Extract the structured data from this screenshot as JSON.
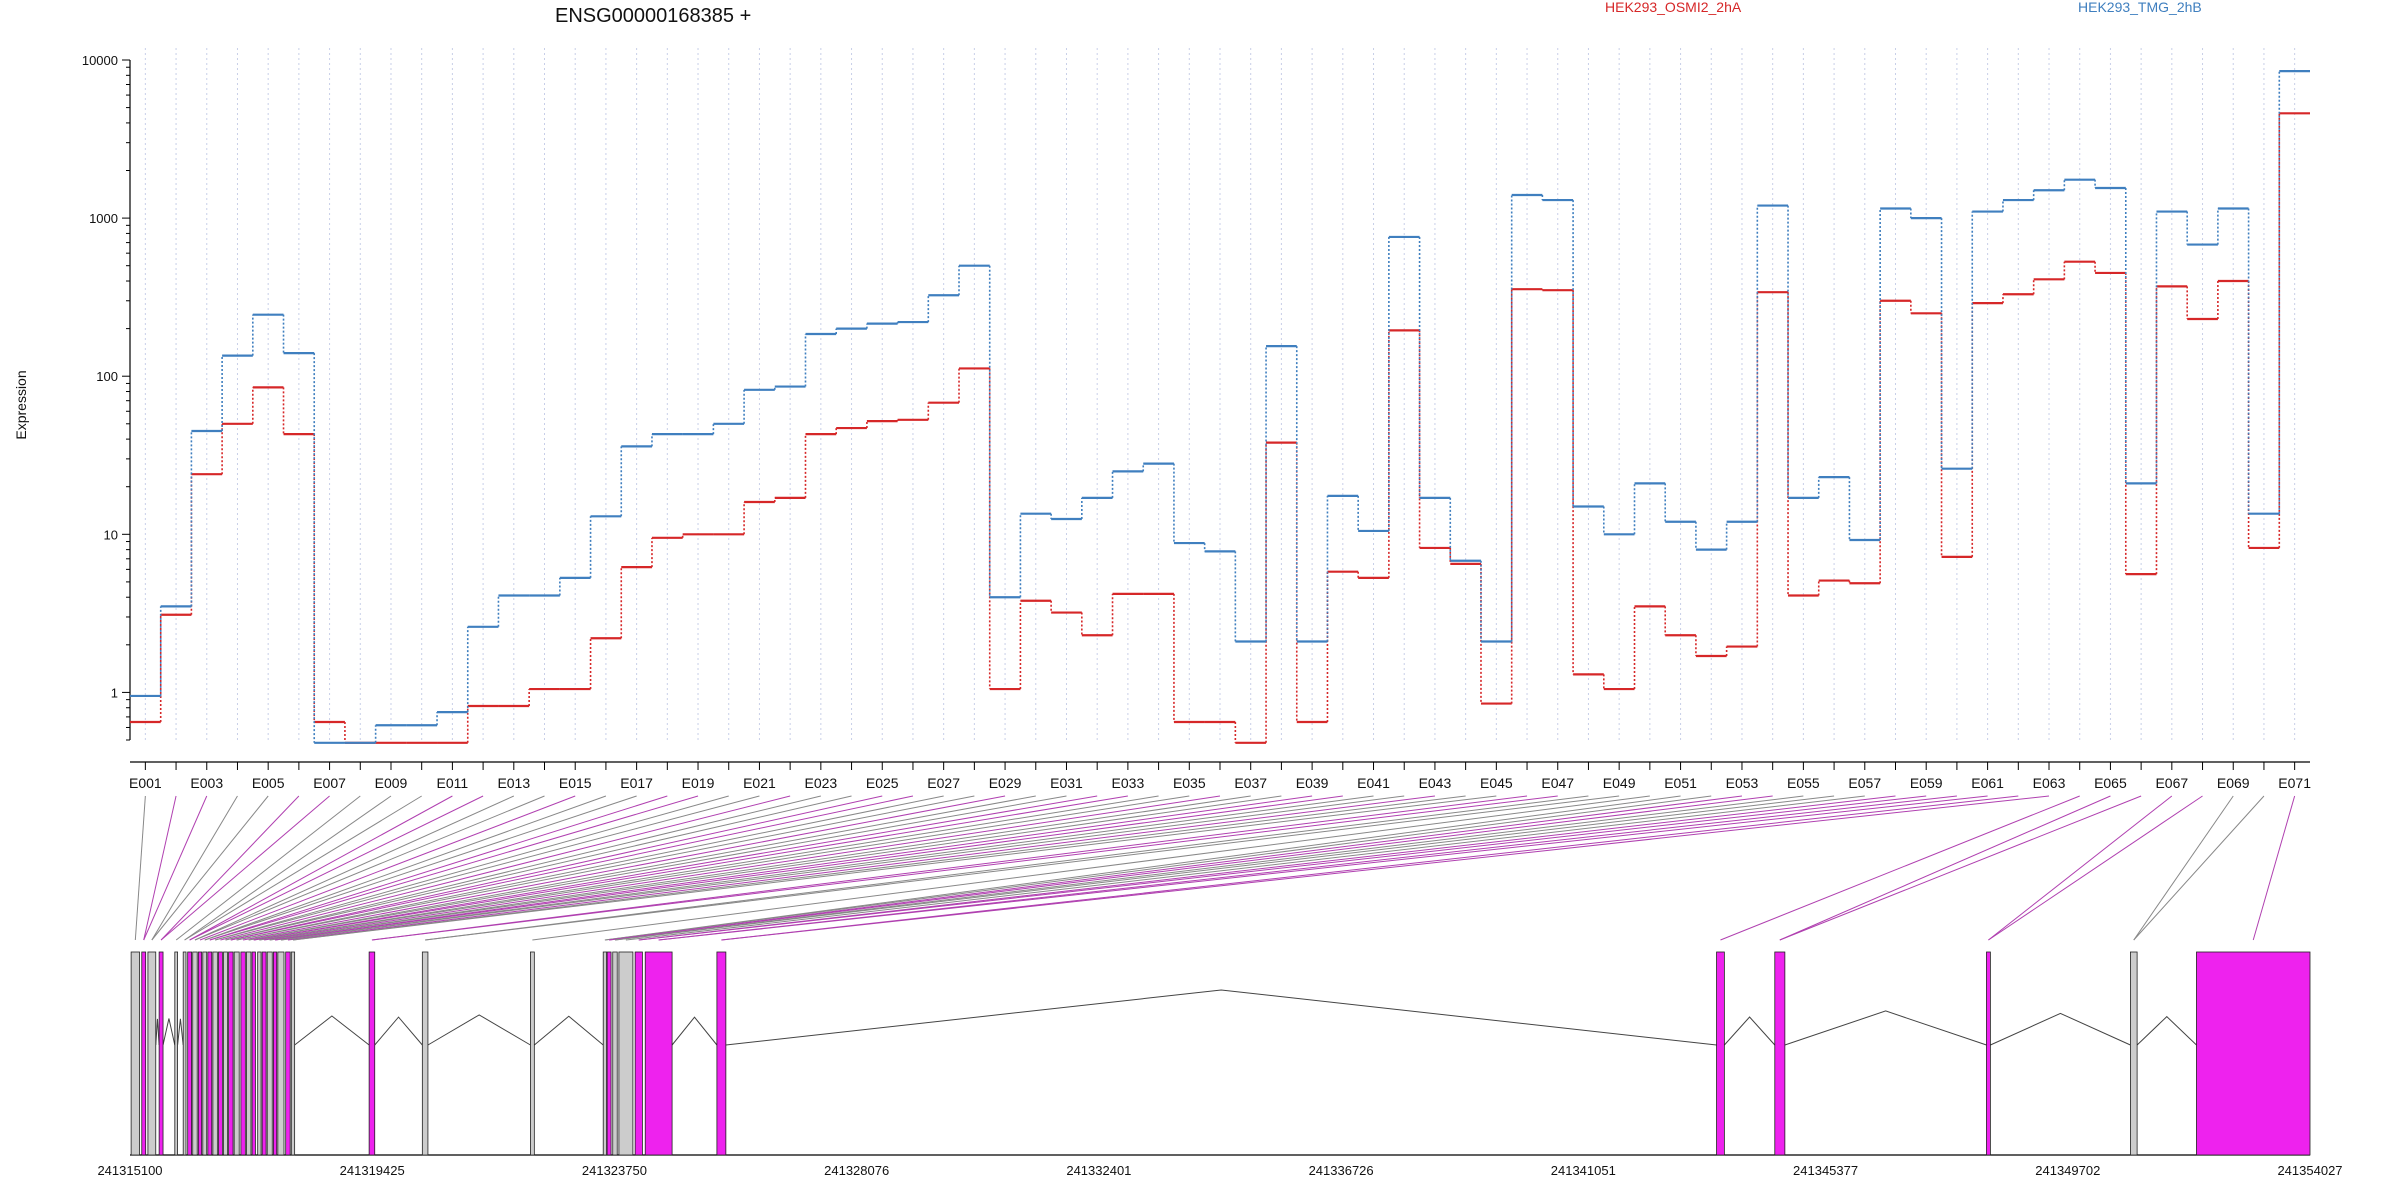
{
  "chart_data": {
    "type": "line",
    "title": "ENSG00000168385 +",
    "ylabel": "Expression",
    "y_scale": "log10",
    "ylim": [
      0.5,
      10000
    ],
    "y_ticks": [
      1,
      10,
      100,
      1000,
      10000
    ],
    "y_tick_labels": [
      "1",
      "10",
      "100",
      "1000",
      "10000"
    ],
    "colors": {
      "HEK293_OSMI2_2hA": "#d62728",
      "HEK293_TMG_2hB": "#3f7fbf",
      "exon_plain": "#cccccc",
      "exon_highlight": "#ee22ee",
      "connector_gray": "#888888",
      "connector_magenta": "#b040b0"
    },
    "categories": [
      "E001",
      "E002",
      "E003",
      "E004",
      "E005",
      "E006",
      "E007",
      "E008",
      "E009",
      "E010",
      "E011",
      "E012",
      "E013",
      "E014",
      "E015",
      "E016",
      "E017",
      "E018",
      "E019",
      "E020",
      "E021",
      "E022",
      "E023",
      "E024",
      "E025",
      "E026",
      "E027",
      "E028",
      "E029",
      "E030",
      "E031",
      "E032",
      "E033",
      "E034",
      "E035",
      "E036",
      "E037",
      "E038",
      "E039",
      "E040",
      "E041",
      "E042",
      "E043",
      "E044",
      "E045",
      "E046",
      "E047",
      "E048",
      "E049",
      "E050",
      "E051",
      "E052",
      "E053",
      "E054",
      "E055",
      "E056",
      "E057",
      "E058",
      "E059",
      "E060",
      "E061",
      "E062",
      "E063",
      "E064",
      "E065",
      "E066",
      "E067",
      "E068",
      "E069",
      "E070",
      "E071"
    ],
    "shown_labels": [
      "E001",
      "E003",
      "E005",
      "E007",
      "E009",
      "E011",
      "E013",
      "E015",
      "E017",
      "E019",
      "E021",
      "E023",
      "E025",
      "E027",
      "E029",
      "E031",
      "E033",
      "E035",
      "E037",
      "E039",
      "E041",
      "E043",
      "E045",
      "E047",
      "E049",
      "E051",
      "E053",
      "E055",
      "E057",
      "E059",
      "E061",
      "E063",
      "E065",
      "E067",
      "E069",
      "E071"
    ],
    "series": [
      {
        "name": "HEK293_OSMI2_2hA",
        "values": [
          0.65,
          3.1,
          24,
          50,
          85,
          43,
          0.65,
          0.48,
          0.48,
          0.48,
          0.48,
          0.82,
          0.82,
          1.05,
          1.05,
          2.2,
          6.2,
          9.5,
          10,
          10,
          16,
          17,
          43,
          47,
          52,
          53,
          68,
          112,
          1.05,
          3.8,
          3.2,
          2.3,
          4.2,
          4.2,
          0.65,
          0.65,
          0.48,
          38,
          0.65,
          5.8,
          5.3,
          195,
          8.2,
          6.5,
          0.85,
          355,
          350,
          1.3,
          1.05,
          3.5,
          2.3,
          1.7,
          1.95,
          340,
          4.1,
          5.1,
          4.9,
          300,
          250,
          7.2,
          290,
          330,
          410,
          530,
          450,
          5.6,
          370,
          230,
          400,
          8.2,
          4600
        ]
      },
      {
        "name": "HEK293_TMG_2hB",
        "values": [
          0.95,
          3.5,
          45,
          135,
          245,
          140,
          0.48,
          0.48,
          0.62,
          0.62,
          0.75,
          2.6,
          4.1,
          4.1,
          5.3,
          13,
          36,
          43,
          43,
          50,
          82,
          86,
          185,
          200,
          215,
          220,
          325,
          500,
          4.0,
          13.5,
          12.5,
          17,
          25,
          28,
          8.8,
          7.8,
          2.1,
          155,
          2.1,
          17.5,
          10.5,
          760,
          17,
          6.8,
          2.1,
          1400,
          1300,
          15,
          10,
          21,
          12,
          8,
          12,
          1200,
          17,
          23,
          9.2,
          1150,
          1000,
          26,
          1100,
          1300,
          1500,
          1750,
          1550,
          21,
          1100,
          680,
          1150,
          13.5,
          8500
        ]
      }
    ],
    "genomic_axis": {
      "ticks": [
        241315100,
        241319425,
        241323750,
        241328076,
        241332401,
        241336726,
        241341051,
        241345377,
        241349702,
        241354027
      ],
      "tick_labels": [
        "241315100",
        "241319425",
        "241323750",
        "241328076",
        "241332401",
        "241336726",
        "241341051",
        "241345377",
        "241349702",
        "241354027"
      ],
      "range": [
        241315100,
        241354027
      ]
    },
    "legend": [
      "HEK293_OSMI2_2hA",
      "HEK293_TMG_2hB"
    ],
    "legend_placement": "top",
    "grid": "vertical dotted lines at each exon",
    "gene_model_exons": [
      [
        241315120,
        241315270,
        0
      ],
      [
        241315310,
        241315380,
        1
      ],
      [
        241315420,
        241315560,
        0
      ],
      [
        241315620,
        241315690,
        1
      ],
      [
        241315900,
        241315950,
        0
      ],
      [
        241316050,
        241316100,
        0
      ],
      [
        241316130,
        241316200,
        1
      ],
      [
        241316220,
        241316300,
        0
      ],
      [
        241316320,
        241316380,
        1
      ],
      [
        241316400,
        241316470,
        0
      ],
      [
        241316490,
        241316560,
        1
      ],
      [
        241316580,
        241316660,
        0
      ],
      [
        241316680,
        241316750,
        1
      ],
      [
        241316770,
        241316840,
        0
      ],
      [
        241316860,
        241316940,
        1
      ],
      [
        241316960,
        241317050,
        0
      ],
      [
        241317080,
        241317160,
        1
      ],
      [
        241317180,
        241317260,
        0
      ],
      [
        241317280,
        241317340,
        1
      ],
      [
        241317380,
        241317440,
        0
      ],
      [
        241317460,
        241317530,
        1
      ],
      [
        241317550,
        241317640,
        0
      ],
      [
        241317660,
        241317720,
        1
      ],
      [
        241317740,
        241317850,
        0
      ],
      [
        241317880,
        241317960,
        1
      ],
      [
        241317980,
        241318040,
        0
      ],
      [
        241319370,
        241319470,
        1
      ],
      [
        241320320,
        241320420,
        0
      ],
      [
        241322250,
        241322320,
        0
      ],
      [
        241323550,
        241323610,
        0
      ],
      [
        241323620,
        241323690,
        1
      ],
      [
        241323720,
        241323800,
        0
      ],
      [
        241323830,
        241324080,
        0
      ],
      [
        241324120,
        241324250,
        1
      ],
      [
        241324300,
        241324780,
        1
      ],
      [
        241325580,
        241325740,
        1
      ],
      [
        241343430,
        241343570,
        1
      ],
      [
        241344470,
        241344650,
        1
      ],
      [
        241348250,
        241348320,
        1
      ],
      [
        241350820,
        241350940,
        0
      ],
      [
        241352000,
        241354027,
        1
      ]
    ]
  }
}
